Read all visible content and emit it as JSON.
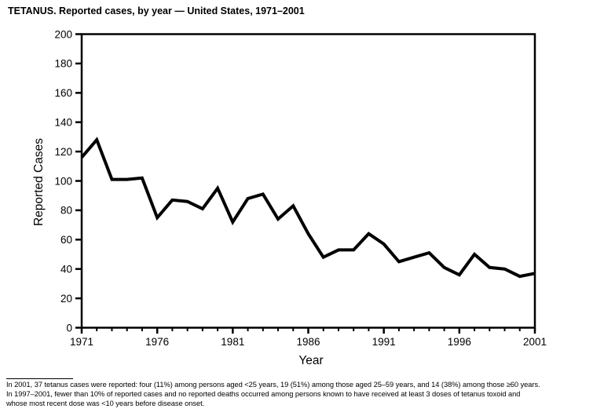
{
  "title": "TETANUS. Reported cases, by year — United States, 1971–2001",
  "chart_data": {
    "type": "line",
    "title": "TETANUS. Reported cases, by year — United States, 1971–2001",
    "xlabel": "Year",
    "ylabel": "Reported Cases",
    "x": [
      1971,
      1972,
      1973,
      1974,
      1975,
      1976,
      1977,
      1978,
      1979,
      1980,
      1981,
      1982,
      1983,
      1984,
      1985,
      1986,
      1987,
      1988,
      1989,
      1990,
      1991,
      1992,
      1993,
      1994,
      1995,
      1996,
      1997,
      1998,
      1999,
      2000,
      2001
    ],
    "series": [
      {
        "name": "Reported tetanus cases",
        "values": [
          116,
          128,
          101,
          101,
          102,
          75,
          87,
          86,
          81,
          95,
          72,
          88,
          91,
          74,
          83,
          64,
          48,
          53,
          53,
          64,
          57,
          45,
          48,
          51,
          41,
          36,
          50,
          41,
          40,
          35,
          37
        ]
      }
    ],
    "ylim": [
      0,
      200
    ],
    "yticks": [
      0,
      20,
      40,
      60,
      80,
      100,
      120,
      140,
      160,
      180,
      200
    ],
    "xticks_labeled": [
      1971,
      1976,
      1981,
      1986,
      1991,
      1996,
      2001
    ],
    "grid": false,
    "legend": false,
    "line_color": "#000000",
    "axis_color": "#000000",
    "background": "#ffffff"
  },
  "footnote": {
    "lines": [
      "In 2001, 37 tetanus cases were reported: four (11%) among persons aged <25 years, 19 (51%) among those aged 25–59 years, and 14 (38%) among those ≥60 years.",
      "In 1997–2001, fewer than 10% of reported cases and no reported deaths occurred among persons known to have received at least 3 doses of tetanus toxoid and",
      "whose most recent dose was <10 years before disease onset."
    ]
  }
}
